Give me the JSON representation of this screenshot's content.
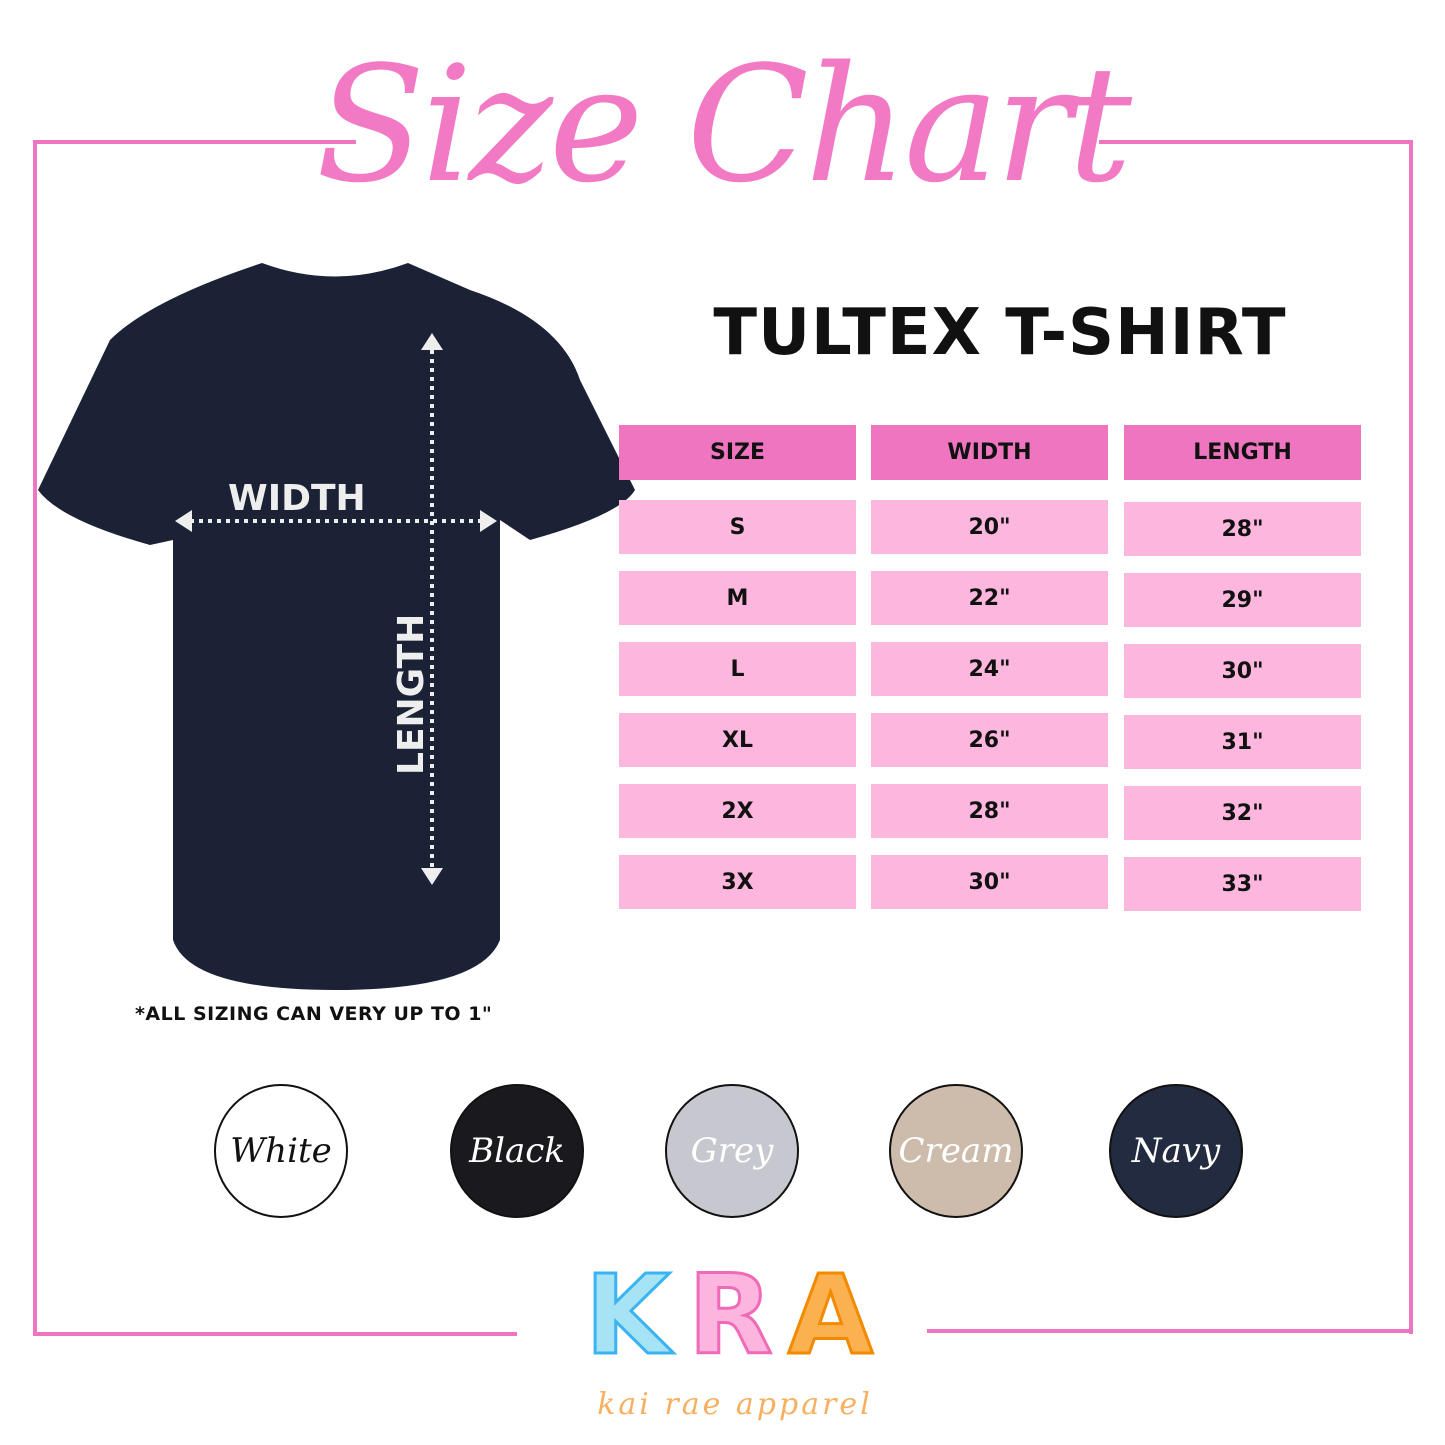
{
  "title": "Size Chart",
  "subtitle": "TULTEX T-SHIRT",
  "shirt": {
    "width_label": "WIDTH",
    "length_label": "LENGTH",
    "color": "#1c2236"
  },
  "table": {
    "headers": [
      "SIZE",
      "WIDTH",
      "LENGTH"
    ],
    "rows": [
      [
        "S",
        "20\"",
        "28\""
      ],
      [
        "M",
        "22\"",
        "29\""
      ],
      [
        "L",
        "24\"",
        "30\""
      ],
      [
        "XL",
        "26\"",
        "31\""
      ],
      [
        "2X",
        "28\"",
        "32\""
      ],
      [
        "3X",
        "30\"",
        "33\""
      ]
    ],
    "header_color": "#f075c0",
    "cell_color": "#fdb6dd"
  },
  "note": "*ALL SIZING CAN VERY UP TO 1\"",
  "colors": [
    {
      "label": "White",
      "fill": "#ffffff",
      "text": "#111111"
    },
    {
      "label": "Black",
      "fill": "#1a1a1e",
      "text": "#ffffff"
    },
    {
      "label": "Grey",
      "fill": "#c7c7cf",
      "text": "#ffffff"
    },
    {
      "label": "Cream",
      "fill": "#cdbcab",
      "text": "#ffffff"
    },
    {
      "label": "Navy",
      "fill": "#222b40",
      "text": "#ffffff"
    }
  ],
  "logo": {
    "letters": [
      "K",
      "R",
      "A"
    ],
    "tagline": "kai rae apparel",
    "letter_colors": [
      "#a5e3f5",
      "#fcb5de",
      "#fbb150"
    ]
  },
  "accent": "#f075c0"
}
